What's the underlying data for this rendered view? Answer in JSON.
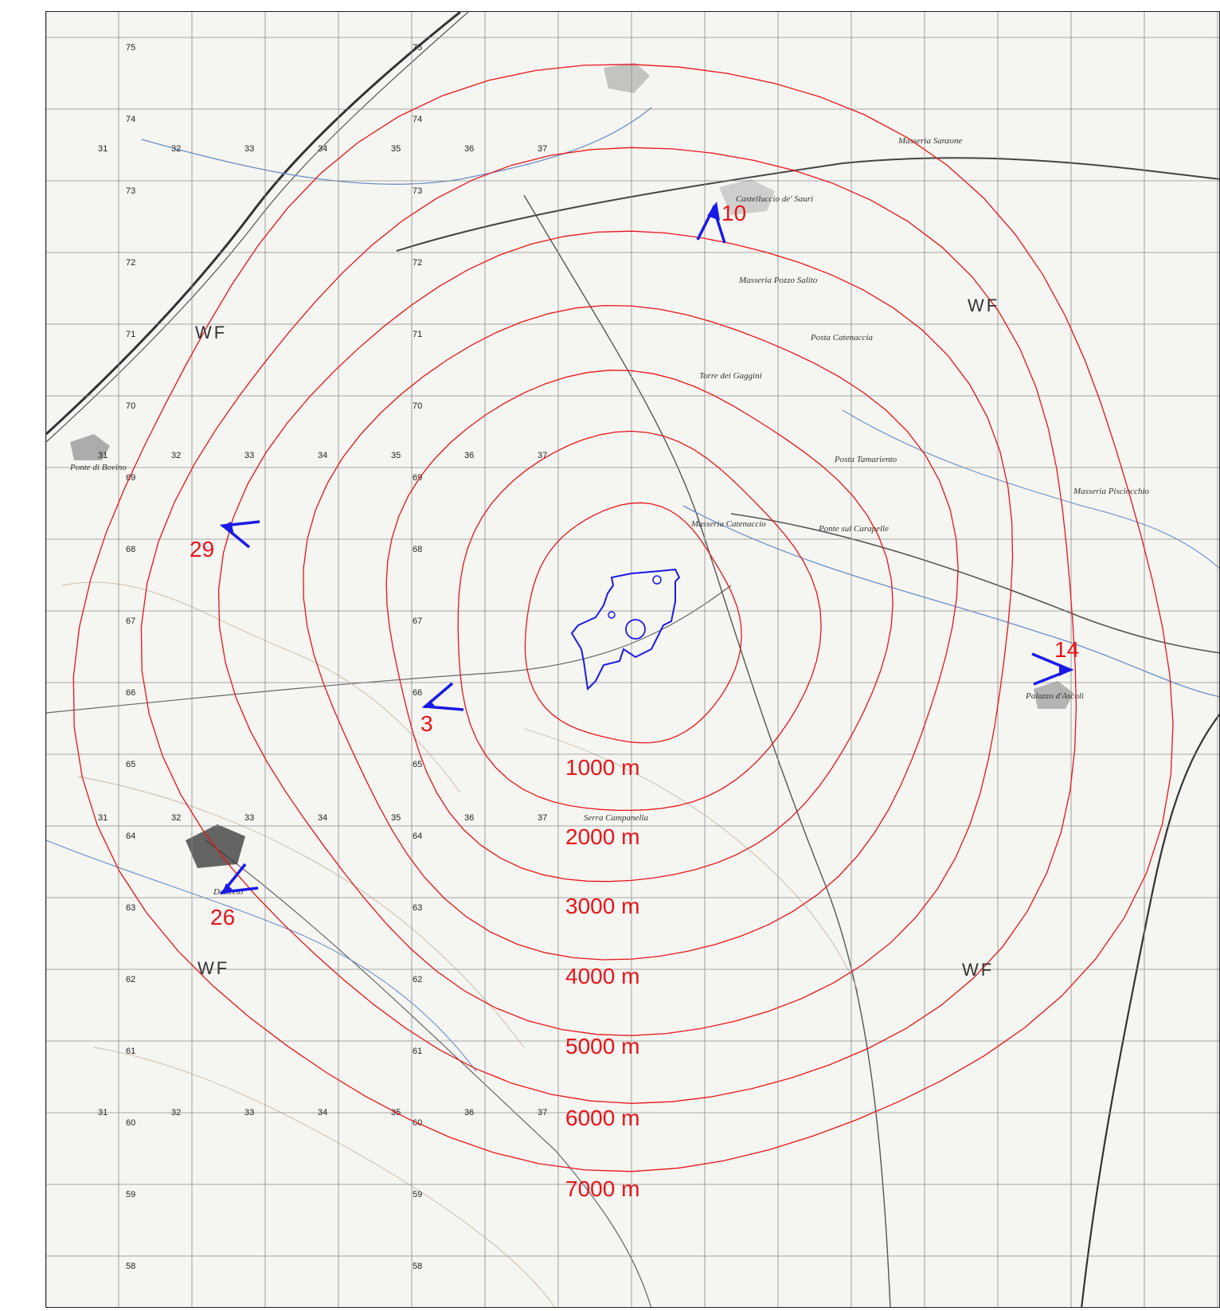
{
  "map": {
    "colors": {
      "rings": "#e8141a",
      "viewpoints": "#1a1ae6",
      "site_outline": "#1a1ae6",
      "background": "#f7f7f4",
      "grid": "#8a8a8a"
    },
    "range_labels": [
      "1000 m",
      "2000 m",
      "3000 m",
      "4000 m",
      "5000 m",
      "6000 m",
      "7000 m"
    ],
    "viewpoints": [
      {
        "number": "10",
        "icon": "viewpoint-arrow-icon"
      },
      {
        "number": "29",
        "icon": "viewpoint-arrow-icon"
      },
      {
        "number": "3",
        "icon": "viewpoint-arrow-icon"
      },
      {
        "number": "14",
        "icon": "viewpoint-arrow-icon"
      },
      {
        "number": "26",
        "icon": "viewpoint-arrow-icon"
      }
    ],
    "wf_labels": [
      "WF",
      "WF",
      "WF",
      "WF"
    ],
    "grid_numbers": {
      "easting": [
        "31",
        "32",
        "33",
        "34",
        "35",
        "36",
        "37"
      ],
      "northing": [
        "75",
        "74",
        "73",
        "72",
        "71",
        "70",
        "69",
        "68",
        "67",
        "66",
        "65",
        "64",
        "63",
        "62",
        "61",
        "60",
        "59",
        "58"
      ]
    },
    "place_names": [
      "Castelluccio de' Sauri",
      "Palazzo d'Ascoli",
      "Ponte di Bovino",
      "Masseria Pisciocchio",
      "Masseria Catenaccio",
      "Posta Tamariento",
      "Ponte sul Carapelle",
      "Masseria Pozzo Salito",
      "Posta Catenaccia",
      "Torre dei Gaggini",
      "Serra Campanella",
      "Masseria Sanzone",
      "Deliceto"
    ]
  }
}
